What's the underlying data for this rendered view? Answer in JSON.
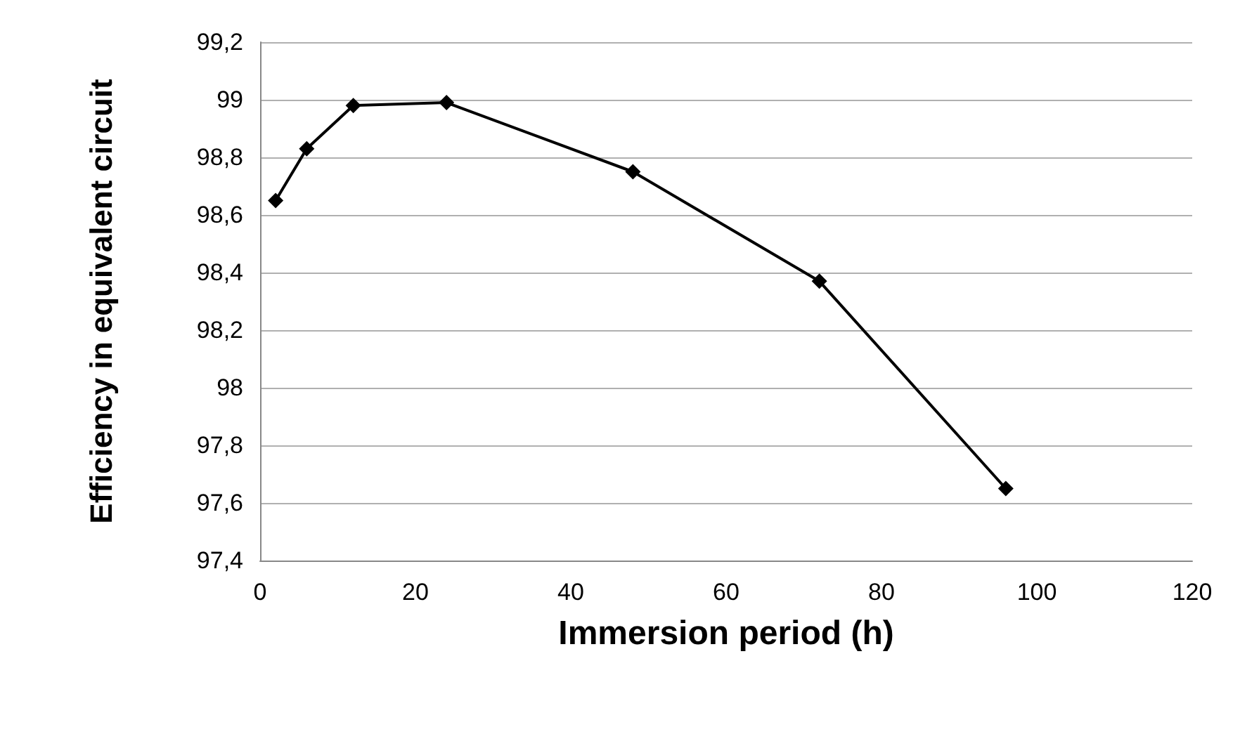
{
  "chart_data": {
    "type": "line",
    "xlabel": "Immersion period (h)",
    "ylabel": "Efficiency in equivalent circuit",
    "x": [
      2,
      6,
      12,
      24,
      48,
      72,
      96
    ],
    "series": [
      {
        "color": "#000000",
        "values": [
          98.65,
          98.83,
          98.98,
          98.99,
          98.75,
          98.37,
          97.65
        ]
      }
    ],
    "xlim": [
      0,
      120
    ],
    "xticks": [
      0,
      20,
      40,
      60,
      80,
      100,
      120
    ],
    "ylim": [
      97.4,
      99.2
    ],
    "yticks": [
      {
        "value": 97.4,
        "label": "97,4"
      },
      {
        "value": 97.6,
        "label": "97,6"
      },
      {
        "value": 97.8,
        "label": "97,8"
      },
      {
        "value": 98,
        "label": "98"
      },
      {
        "value": 98.2,
        "label": "98,2"
      },
      {
        "value": 98.4,
        "label": "98,4"
      },
      {
        "value": 98.6,
        "label": "98,6"
      },
      {
        "value": 98.8,
        "label": "98,8"
      },
      {
        "value": 99,
        "label": "99"
      },
      {
        "value": 99.2,
        "label": "99,2"
      }
    ],
    "grid": "y",
    "marker": "diamond",
    "line_style": "solid"
  }
}
